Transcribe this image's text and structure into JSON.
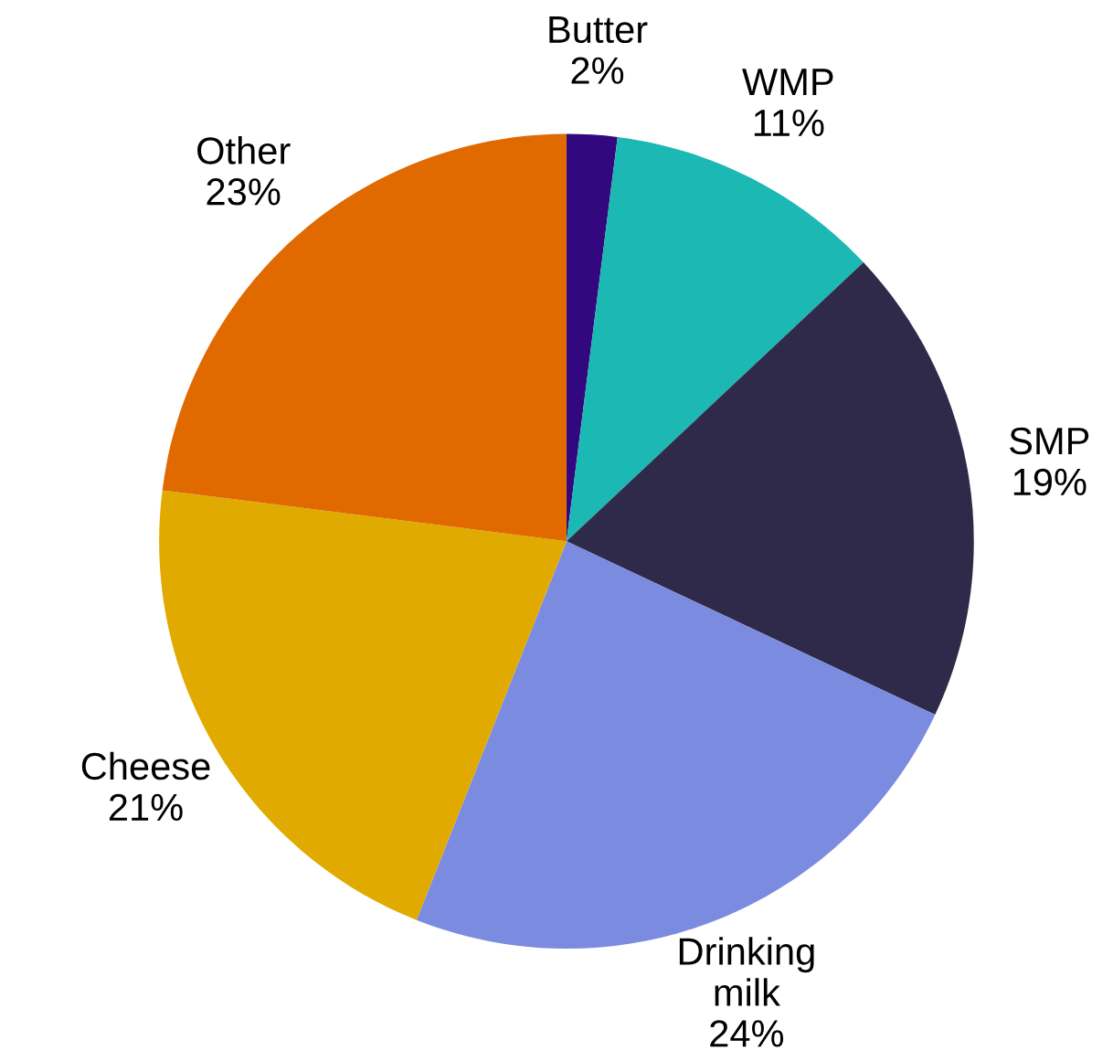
{
  "chart_data": {
    "type": "pie",
    "categories": [
      "Butter",
      "WMP",
      "SMP",
      "Drinking\nmilk",
      "Cheese",
      "Other"
    ],
    "values": [
      2,
      11,
      19,
      24,
      21,
      23
    ],
    "colors": [
      "#33087f",
      "#1bb8b4",
      "#302a4a",
      "#7b8be0",
      "#e0aa00",
      "#e06a00"
    ],
    "value_labels": [
      "2%",
      "11%",
      "19%",
      "24%",
      "21%",
      "23%"
    ],
    "legend": false
  }
}
